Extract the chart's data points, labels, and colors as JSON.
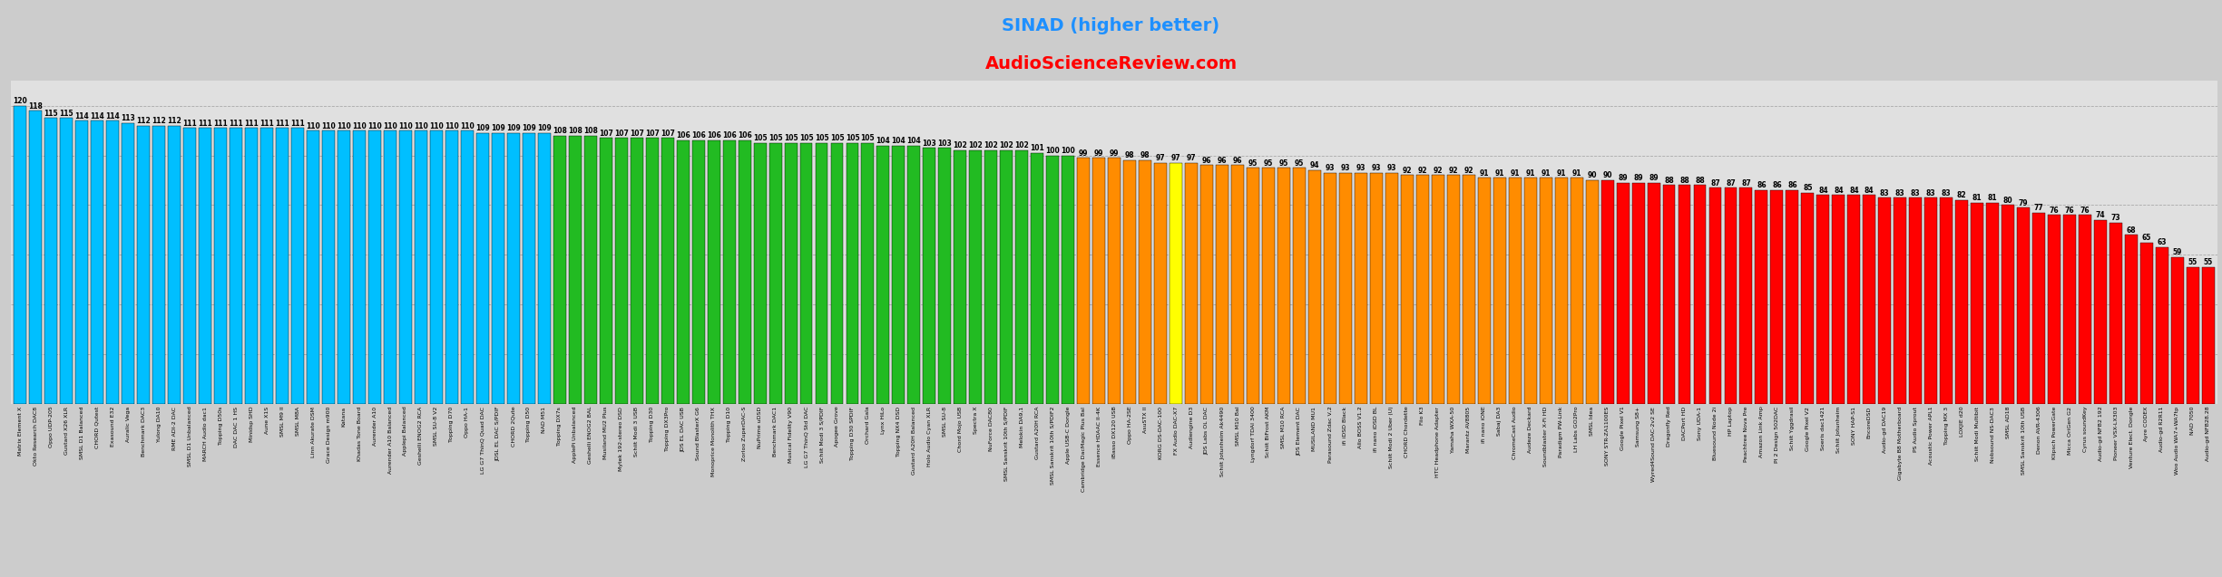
{
  "title1": "SINAD (higher better)",
  "title2": "AudioScienceReview.com",
  "title1_color": "#1E90FF",
  "title2_color": "#FF0000",
  "background_color": "#D8D8D8",
  "bars": [
    {
      "label": "Matrix Element X",
      "value": 120,
      "color": "#00BFFF"
    },
    {
      "label": "Okto Research DAC8",
      "value": 118,
      "color": "#00BFFF"
    },
    {
      "label": "Oppo UDP-205",
      "value": 115,
      "color": "#00BFFF"
    },
    {
      "label": "Gustard X26 XLR",
      "value": 115,
      "color": "#00BFFF"
    },
    {
      "label": "SMSL D1 Balanced",
      "value": 114,
      "color": "#00BFFF"
    },
    {
      "label": "CHORD Qutest",
      "value": 114,
      "color": "#00BFFF"
    },
    {
      "label": "Exasound E32",
      "value": 114,
      "color": "#00BFFF"
    },
    {
      "label": "Auralic Vega",
      "value": 113,
      "color": "#00BFFF"
    },
    {
      "label": "Benchmark DAC3",
      "value": 112,
      "color": "#00BFFF"
    },
    {
      "label": "Yulong DA10",
      "value": 112,
      "color": "#00BFFF"
    },
    {
      "label": "RME ADI-2 DAC",
      "value": 112,
      "color": "#00BFFF"
    },
    {
      "label": "SMSL D1 Unbalanced",
      "value": 111,
      "color": "#00BFFF"
    },
    {
      "label": "MARCH Audio dac1",
      "value": 111,
      "color": "#00BFFF"
    },
    {
      "label": "Topping D50s",
      "value": 111,
      "color": "#00BFFF"
    },
    {
      "label": "DAC DAC 1 HS",
      "value": 111,
      "color": "#00BFFF"
    },
    {
      "label": "Minidsp SHD",
      "value": 111,
      "color": "#00BFFF"
    },
    {
      "label": "Aune X1S",
      "value": 111,
      "color": "#00BFFF"
    },
    {
      "label": "SMSL M9 II",
      "value": 111,
      "color": "#00BFFF"
    },
    {
      "label": "SMSL M8A",
      "value": 111,
      "color": "#00BFFF"
    },
    {
      "label": "Linn Akurate DSM",
      "value": 110,
      "color": "#00BFFF"
    },
    {
      "label": "Grace Design m900",
      "value": 110,
      "color": "#00BFFF"
    },
    {
      "label": "Katana",
      "value": 110,
      "color": "#00BFFF"
    },
    {
      "label": "Khadas Tone Board",
      "value": 110,
      "color": "#00BFFF"
    },
    {
      "label": "Aurender A10",
      "value": 110,
      "color": "#00BFFF"
    },
    {
      "label": "Aurender A10 Balanced",
      "value": 110,
      "color": "#00BFFF"
    },
    {
      "label": "Applepi Balanced",
      "value": 110,
      "color": "#00BFFF"
    },
    {
      "label": "Geshelli ENOG2 RCA",
      "value": 110,
      "color": "#00BFFF"
    },
    {
      "label": "SMSL SU-8 V2",
      "value": 110,
      "color": "#00BFFF"
    },
    {
      "label": "Topping D70",
      "value": 110,
      "color": "#00BFFF"
    },
    {
      "label": "Oppo HA-1",
      "value": 110,
      "color": "#00BFFF"
    },
    {
      "label": "LG G7 ThinQ Quad DAC",
      "value": 109,
      "color": "#00BFFF"
    },
    {
      "label": "JDSL EL DAC S/PDIF",
      "value": 109,
      "color": "#00BFFF"
    },
    {
      "label": "CHORD 2Qute",
      "value": 109,
      "color": "#00BFFF"
    },
    {
      "label": "Topping D50",
      "value": 109,
      "color": "#00BFFF"
    },
    {
      "label": "NAD M51",
      "value": 109,
      "color": "#00BFFF"
    },
    {
      "label": "Topping DX7s",
      "value": 108,
      "color": "#22BB22"
    },
    {
      "label": "ApplePi Unbalanced",
      "value": 108,
      "color": "#22BB22"
    },
    {
      "label": "Geshelli ENOG2 BAL",
      "value": 108,
      "color": "#22BB22"
    },
    {
      "label": "Musiland MU2 Plus",
      "value": 107,
      "color": "#22BB22"
    },
    {
      "label": "Mytek 192-stereo DSD",
      "value": 107,
      "color": "#22BB22"
    },
    {
      "label": "Schiit Modi 3 USB",
      "value": 107,
      "color": "#22BB22"
    },
    {
      "label": "Topping D30",
      "value": 107,
      "color": "#22BB22"
    },
    {
      "label": "Topping DX3Pro",
      "value": 107,
      "color": "#22BB22"
    },
    {
      "label": "JDS EL DAC USB",
      "value": 106,
      "color": "#22BB22"
    },
    {
      "label": "Sound BlasterX G6",
      "value": 106,
      "color": "#22BB22"
    },
    {
      "label": "Monoprice Monolith THX",
      "value": 106,
      "color": "#22BB22"
    },
    {
      "label": "Topping D10",
      "value": 106,
      "color": "#22BB22"
    },
    {
      "label": "Zorloo ZuperDAC-S",
      "value": 106,
      "color": "#22BB22"
    },
    {
      "label": "NuPrime uDSD",
      "value": 105,
      "color": "#22BB22"
    },
    {
      "label": "Benchmark DAC1",
      "value": 105,
      "color": "#22BB22"
    },
    {
      "label": "Musical Fidelity V90",
      "value": 105,
      "color": "#22BB22"
    },
    {
      "label": "LG G7 ThinQ Std DAC",
      "value": 105,
      "color": "#22BB22"
    },
    {
      "label": "Schiit Modi 3 S/PDIF",
      "value": 105,
      "color": "#22BB22"
    },
    {
      "label": "Apogee Grove",
      "value": 105,
      "color": "#22BB22"
    },
    {
      "label": "Topping D30 SPDIF",
      "value": 105,
      "color": "#22BB22"
    },
    {
      "label": "Orchard Gala",
      "value": 105,
      "color": "#22BB22"
    },
    {
      "label": "Lynx HiLo",
      "value": 104,
      "color": "#22BB22"
    },
    {
      "label": "Topping NX4 DSD",
      "value": 104,
      "color": "#22BB22"
    },
    {
      "label": "Gustard A20H Balanced",
      "value": 104,
      "color": "#22BB22"
    },
    {
      "label": "Holo Audio Cyan XLR",
      "value": 103,
      "color": "#22BB22"
    },
    {
      "label": "SMSL SU-8",
      "value": 103,
      "color": "#22BB22"
    },
    {
      "label": "Chord Mojo USB",
      "value": 102,
      "color": "#22BB22"
    },
    {
      "label": "Spectra X",
      "value": 102,
      "color": "#22BB22"
    },
    {
      "label": "NuForce DAC80",
      "value": 102,
      "color": "#22BB22"
    },
    {
      "label": "SMSL Sanskrit 10th S/PDIF",
      "value": 102,
      "color": "#22BB22"
    },
    {
      "label": "Melokin DA9,1",
      "value": 102,
      "color": "#22BB22"
    },
    {
      "label": "Gustard A20H RCA",
      "value": 101,
      "color": "#22BB22"
    },
    {
      "label": "SMSL Sanskrit 10th S/PDIF2",
      "value": 100,
      "color": "#22BB22"
    },
    {
      "label": "Apple USB-C Dongle",
      "value": 100,
      "color": "#22BB22"
    },
    {
      "label": "Cambridge DacMagic Plus Bal",
      "value": 99,
      "color": "#FF8C00"
    },
    {
      "label": "Essence HDAAC II-4K",
      "value": 99,
      "color": "#FF8C00"
    },
    {
      "label": "iBasso DX120 USB",
      "value": 99,
      "color": "#FF8C00"
    },
    {
      "label": "Oppo HA-2SE",
      "value": 98,
      "color": "#FF8C00"
    },
    {
      "label": "AsuSTX II",
      "value": 98,
      "color": "#FF8C00"
    },
    {
      "label": "KORG DS-DAC-100",
      "value": 97,
      "color": "#FF8C00"
    },
    {
      "label": "FX Audio DAC-X7",
      "value": 97,
      "color": "#FFFF00"
    },
    {
      "label": "Audiengine D3",
      "value": 97,
      "color": "#FF8C00"
    },
    {
      "label": "JDS Labs OL DAC",
      "value": 96,
      "color": "#FF8C00"
    },
    {
      "label": "Schiit Jotunheim Ak4490",
      "value": 96,
      "color": "#FF8C00"
    },
    {
      "label": "SMSL M10 Bal",
      "value": 96,
      "color": "#FF8C00"
    },
    {
      "label": "Lyngdorf TDAI 3400",
      "value": 95,
      "color": "#FF8C00"
    },
    {
      "label": "Schiit BiFrost AKM",
      "value": 95,
      "color": "#FF8C00"
    },
    {
      "label": "SMSL M10 RCA",
      "value": 95,
      "color": "#FF8C00"
    },
    {
      "label": "JDS Element DAC",
      "value": 95,
      "color": "#FF8C00"
    },
    {
      "label": "MUSILAND MU1",
      "value": 94,
      "color": "#FF8C00"
    },
    {
      "label": "Parasound Zdac V,2",
      "value": 93,
      "color": "#FF8C00"
    },
    {
      "label": "ifi iDSD Black",
      "value": 93,
      "color": "#FF8C00"
    },
    {
      "label": "Allo BOSS V1.2",
      "value": 93,
      "color": "#FF8C00"
    },
    {
      "label": "ifi nano iDSD BL",
      "value": 93,
      "color": "#FF8C00"
    },
    {
      "label": "Schiit Modi 2 Uber (U)",
      "value": 93,
      "color": "#FF8C00"
    },
    {
      "label": "CHORD Chordette",
      "value": 92,
      "color": "#FF8C00"
    },
    {
      "label": "Fiio K3",
      "value": 92,
      "color": "#FF8C00"
    },
    {
      "label": "HTC Headphone Adapter",
      "value": 92,
      "color": "#FF8C00"
    },
    {
      "label": "Yamaha WXA-50",
      "value": 92,
      "color": "#FF8C00"
    },
    {
      "label": "Marantz AV8805",
      "value": 92,
      "color": "#FF8C00"
    },
    {
      "label": "ifi nano iONE",
      "value": 91,
      "color": "#FF8C00"
    },
    {
      "label": "Sabaj DA3",
      "value": 91,
      "color": "#FF8C00"
    },
    {
      "label": "ChromeCast Audio",
      "value": 91,
      "color": "#FF8C00"
    },
    {
      "label": "Audeze Deckard",
      "value": 91,
      "color": "#FF8C00"
    },
    {
      "label": "Soundblaster X-Fi HD",
      "value": 91,
      "color": "#FF8C00"
    },
    {
      "label": "Paradigm PW-Link",
      "value": 91,
      "color": "#FF8C00"
    },
    {
      "label": "LH Labs GO2Pro",
      "value": 91,
      "color": "#FF8C00"
    },
    {
      "label": "SMSL Idea",
      "value": 90,
      "color": "#FF8C00"
    },
    {
      "label": "SONY STR-ZA1100ES",
      "value": 90,
      "color": "#FF0000"
    },
    {
      "label": "Google Pixel V1",
      "value": 89,
      "color": "#FF0000"
    },
    {
      "label": "Samsung S8+",
      "value": 89,
      "color": "#FF0000"
    },
    {
      "label": "Wyred4Sound DAC-2v2 SE",
      "value": 89,
      "color": "#FF0000"
    },
    {
      "label": "Dragonfly Red",
      "value": 88,
      "color": "#FF0000"
    },
    {
      "label": "DACPort HD",
      "value": 88,
      "color": "#FF0000"
    },
    {
      "label": "Sony UDA-1",
      "value": 88,
      "color": "#FF0000"
    },
    {
      "label": "Bluesound Node 2i",
      "value": 87,
      "color": "#FF0000"
    },
    {
      "label": "HP Laptop",
      "value": 87,
      "color": "#FF0000"
    },
    {
      "label": "Peachtree Nova Pre",
      "value": 87,
      "color": "#FF0000"
    },
    {
      "label": "Amazon Link Amp",
      "value": 86,
      "color": "#FF0000"
    },
    {
      "label": "PI 2 Design 502DAC",
      "value": 86,
      "color": "#FF0000"
    },
    {
      "label": "Schiit Yggdrasil",
      "value": 86,
      "color": "#FF0000"
    },
    {
      "label": "Google Pixel V2",
      "value": 85,
      "color": "#FF0000"
    },
    {
      "label": "Soeris dac1421",
      "value": 84,
      "color": "#FF0000"
    },
    {
      "label": "Schiit Jotunheim",
      "value": 84,
      "color": "#FF0000"
    },
    {
      "label": "SONY HAP-S1",
      "value": 84,
      "color": "#FF0000"
    },
    {
      "label": "EncoreDSD",
      "value": 84,
      "color": "#FF0000"
    },
    {
      "label": "Audio-gd DAC19",
      "value": 83,
      "color": "#FF0000"
    },
    {
      "label": "Gigabyte B8 Motherboard",
      "value": 83,
      "color": "#FF0000"
    },
    {
      "label": "PS Audio Sprout",
      "value": 83,
      "color": "#FF0000"
    },
    {
      "label": "Acoustic Power APL1",
      "value": 83,
      "color": "#FF0000"
    },
    {
      "label": "Topping MX 3",
      "value": 83,
      "color": "#FF0000"
    },
    {
      "label": "LOXJIE d20",
      "value": 82,
      "color": "#FF0000"
    },
    {
      "label": "Schiit Modi Multibit",
      "value": 81,
      "color": "#FF0000"
    },
    {
      "label": "Nobsound NS-DAC3",
      "value": 81,
      "color": "#FF0000"
    },
    {
      "label": "SMSL AD18",
      "value": 80,
      "color": "#FF0000"
    },
    {
      "label": "SMSL Sanskrit 10th USB",
      "value": 79,
      "color": "#FF0000"
    },
    {
      "label": "Denon AVR-4306",
      "value": 77,
      "color": "#FF0000"
    },
    {
      "label": "Klipsch PowerGate",
      "value": 76,
      "color": "#FF0000"
    },
    {
      "label": "Micca OriGen G2",
      "value": 76,
      "color": "#FF0000"
    },
    {
      "label": "Cyrus soundKey",
      "value": 76,
      "color": "#FF0000"
    },
    {
      "label": "Audio-gd NFB2 192",
      "value": 74,
      "color": "#FF0000"
    },
    {
      "label": "Pioneer VSX-LX303",
      "value": 73,
      "color": "#FF0000"
    },
    {
      "label": "Venture Elect. Dongle",
      "value": 68,
      "color": "#FF0000"
    },
    {
      "label": "Ayre CODEX",
      "value": 65,
      "color": "#FF0000"
    },
    {
      "label": "Audio-gd R2R11",
      "value": 63,
      "color": "#FF0000"
    },
    {
      "label": "Woo Audio WA7+WA7tp",
      "value": 59,
      "color": "#FF0000"
    },
    {
      "label": "NAD 7050",
      "value": 55,
      "color": "#FF0000"
    },
    {
      "label": "Audio-gd NFB28.28",
      "value": 55,
      "color": "#FF0000"
    }
  ],
  "ylim": [
    0,
    130
  ],
  "grid_lines": [
    20,
    40,
    60,
    80,
    100,
    120
  ],
  "val_fontsize": 5.5,
  "label_fontsize": 4.5,
  "title1_fontsize": 14,
  "title2_fontsize": 14,
  "bar_width": 0.82
}
